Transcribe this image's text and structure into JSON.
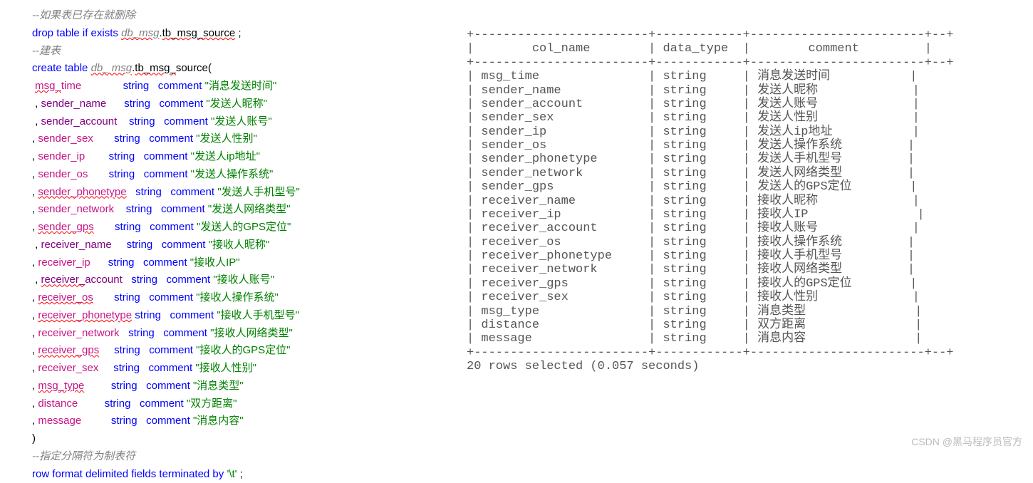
{
  "colors": {
    "keyword": "#0000ff",
    "comment": "#808080",
    "string": "#008000",
    "identifier": "#800080",
    "plain": "#000000",
    "background": "#ffffff",
    "terminal_text": "#555555",
    "wavy_underline": "#ff0000",
    "watermark": "#bbbbbb"
  },
  "sql": {
    "comment_drop": "--如果表已存在就删除",
    "drop_kw": "drop table if exists ",
    "db_prefix": "db_msg",
    "dot": ".",
    "tb1": "tb_msg_source",
    "semi": " ;",
    "comment_create": "--建表",
    "create_kw": "create table ",
    "tb2": "tb_msg_",
    "tb2_suffix": "source(",
    "rows": [
      {
        "pre": " ",
        "name": "msg_",
        "wavy": true,
        "name2": "time",
        "gap": "              ",
        "type": "string",
        "cgap": "   ",
        "str": "\"消息发送时间\"",
        "idcls": "ident-fuchsia"
      },
      {
        "pre": " , ",
        "name": "sender_name",
        "wavy": false,
        "name2": "",
        "gap": "      ",
        "type": "string",
        "cgap": "   ",
        "str": "\"发送人昵称\"",
        "idcls": "ident-purple"
      },
      {
        "pre": " , ",
        "name": "sender_account",
        "wavy": false,
        "name2": "",
        "gap": "    ",
        "type": "string",
        "cgap": "   ",
        "str": "\"发送人账号\"",
        "idcls": "ident-purple"
      },
      {
        "pre": ", ",
        "name": "sender_sex",
        "wavy": false,
        "name2": "",
        "gap": "       ",
        "type": "string",
        "cgap": "   ",
        "str": "\"发送人性别\"",
        "idcls": "ident-fuchsia"
      },
      {
        "pre": ", ",
        "name": "sender_ip",
        "wavy": false,
        "name2": "",
        "gap": "        ",
        "type": "string",
        "cgap": "   ",
        "str": "\"发送人ip地址\"",
        "idcls": "ident-fuchsia"
      },
      {
        "pre": ", ",
        "name": "sender_os",
        "wavy": false,
        "name2": "",
        "gap": "       ",
        "type": "string",
        "cgap": "   ",
        "str": "\"发送人操作系统\"",
        "idcls": "ident-fuchsia"
      },
      {
        "pre": ", ",
        "name": "sender_phonetype",
        "wavy": true,
        "name2": "",
        "gap": "   ",
        "type": "string",
        "cgap": "   ",
        "str": "\"发送人手机型号\"",
        "idcls": "ident-fuchsia"
      },
      {
        "pre": ", ",
        "name": "sender_network",
        "wavy": false,
        "name2": "",
        "gap": "    ",
        "type": "string",
        "cgap": "   ",
        "str": "\"发送人网络类型\"",
        "idcls": "ident-fuchsia"
      },
      {
        "pre": ", ",
        "name": "sender_gps",
        "wavy": true,
        "name2": "",
        "gap": "       ",
        "type": "string",
        "cgap": "   ",
        "str": "\"发送人的GPS定位\"",
        "idcls": "ident-fuchsia"
      },
      {
        "pre": " , ",
        "name": "receiver_name",
        "wavy": false,
        "name2": "",
        "gap": "     ",
        "type": "string",
        "cgap": "   ",
        "str": "\"接收人昵称\"",
        "idcls": "ident-purple"
      },
      {
        "pre": ", ",
        "name": "receiver_ip",
        "wavy": false,
        "name2": "",
        "gap": "      ",
        "type": "string",
        "cgap": "   ",
        "str": "\"接收人IP\"",
        "idcls": "ident-fuchsia"
      },
      {
        "pre": " , ",
        "name": "receiver_",
        "wavy": true,
        "name2": "account",
        "gap": "   ",
        "type": "string",
        "cgap": "   ",
        "str": "\"接收人账号\"",
        "idcls": "ident-purple"
      },
      {
        "pre": ", ",
        "name": "receiver_os",
        "wavy": true,
        "name2": "",
        "gap": "       ",
        "type": "string",
        "cgap": "   ",
        "str": "\"接收人操作系统\"",
        "idcls": "ident-fuchsia"
      },
      {
        "pre": ", ",
        "name": "receiver_phonetype",
        "wavy": true,
        "name2": "",
        "gap": " ",
        "type": "string",
        "cgap": "   ",
        "str": "\"接收人手机型号\"",
        "idcls": "ident-fuchsia"
      },
      {
        "pre": ", ",
        "name": "receiver_network",
        "wavy": false,
        "name2": "",
        "gap": "   ",
        "type": "string",
        "cgap": "   ",
        "str": "\"接收人网络类型\"",
        "idcls": "ident-fuchsia"
      },
      {
        "pre": ", ",
        "name": "receiver_gps",
        "wavy": true,
        "name2": "",
        "gap": "     ",
        "type": "string",
        "cgap": "   ",
        "str": "\"接收人的GPS定位\"",
        "idcls": "ident-fuchsia"
      },
      {
        "pre": ", ",
        "name": "receiver_sex",
        "wavy": false,
        "name2": "",
        "gap": "     ",
        "type": "string",
        "cgap": "   ",
        "str": "\"接收人性别\"",
        "idcls": "ident-fuchsia"
      },
      {
        "pre": ", ",
        "name": "msg_type",
        "wavy": true,
        "name2": "",
        "gap": "         ",
        "type": "string",
        "cgap": "   ",
        "str": "\"消息类型\"",
        "idcls": "ident-fuchsia"
      },
      {
        "pre": ", ",
        "name": "distance",
        "wavy": false,
        "name2": "",
        "gap": "         ",
        "type": "string",
        "cgap": "   ",
        "str": "\"双方距离\"",
        "idcls": "ident-fuchsia"
      },
      {
        "pre": ", ",
        "name": "message",
        "wavy": false,
        "name2": "",
        "gap": "          ",
        "type": "string",
        "cgap": "   ",
        "str": "\"消息内容\"",
        "idcls": "ident-fuchsia"
      }
    ],
    "close_paren": ")",
    "comment_sep": "--指定分隔符为制表符",
    "row_format": "row format delimited fields terminated by ",
    "row_format_str": "'\\t'",
    "row_format_end": " ;"
  },
  "terminal": {
    "border": "+------------------------+------------+------------------------+--+",
    "header": "|        col_name        | data_type  |        comment         |",
    "rows": [
      "| msg_time               | string     | 消息发送时间           |",
      "| sender_name            | string     | 发送人昵称             |",
      "| sender_account         | string     | 发送人账号             |",
      "| sender_sex             | string     | 发送人性别             |",
      "| sender_ip              | string     | 发送人ip地址           |",
      "| sender_os              | string     | 发送人操作系统         |",
      "| sender_phonetype       | string     | 发送人手机型号         |",
      "| sender_network         | string     | 发送人网络类型         |",
      "| sender_gps             | string     | 发送人的GPS定位        |",
      "| receiver_name          | string     | 接收人昵称             |",
      "| receiver_ip            | string     | 接收人IP               |",
      "| receiver_account       | string     | 接收人账号             |",
      "| receiver_os            | string     | 接收人操作系统         |",
      "| receiver_phonetype     | string     | 接收人手机型号         |",
      "| receiver_network       | string     | 接收人网络类型         |",
      "| receiver_gps           | string     | 接收人的GPS定位        |",
      "| receiver_sex           | string     | 接收人性别             |",
      "| msg_type               | string     | 消息类型               |",
      "| distance               | string     | 双方距离               |",
      "| message                | string     | 消息内容               |"
    ],
    "footer": "20 rows selected (0.057 seconds)"
  },
  "watermark": "CSDN @黑马程序员官方"
}
